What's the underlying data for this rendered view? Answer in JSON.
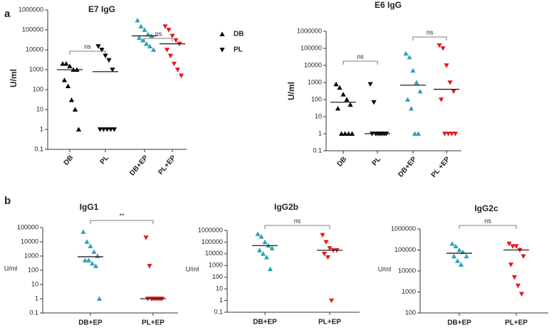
{
  "panel_labels": [
    "a",
    "b"
  ],
  "chart_data": [
    {
      "type": "scatter",
      "title": "E7 IgG",
      "y_label": "U/ml",
      "log_scale": true,
      "ylim": [
        0.1,
        1000000
      ],
      "yticks": [
        0.1,
        1,
        10,
        100,
        1000,
        10000,
        100000,
        1000000
      ],
      "categories": [
        "DB",
        "PL",
        "DB+EP",
        "PL+EP"
      ],
      "legend": [
        {
          "name": "DB",
          "marker": "triangle-up",
          "color": "#000000"
        },
        {
          "name": "PL",
          "marker": "triangle-down",
          "color": "#000000"
        }
      ],
      "annotations": [
        "ns",
        "ns"
      ],
      "groups": [
        {
          "color": "#000000",
          "marker": "triangle-up",
          "values": [
            2000,
            2000,
            1500,
            1000,
            1000,
            300,
            150,
            30,
            10,
            1
          ],
          "median": 1000
        },
        {
          "color": "#000000",
          "marker": "triangle-down",
          "values": [
            15000,
            10000,
            5000,
            3000,
            1000,
            1,
            1,
            1,
            1,
            1
          ],
          "median": 800
        },
        {
          "color": "#2aa3b8",
          "marker": "triangle-up",
          "values": [
            300000,
            150000,
            100000,
            60000,
            50000,
            40000,
            30000,
            20000,
            15000,
            10000
          ],
          "median": 50000
        },
        {
          "color": "#e8191c",
          "marker": "triangle-down",
          "values": [
            150000,
            100000,
            50000,
            30000,
            20000,
            10000,
            5000,
            2000,
            1000,
            500
          ],
          "median": 20000
        }
      ]
    },
    {
      "type": "scatter",
      "title": "E6 IgG",
      "y_label": "U/ml",
      "log_scale": true,
      "ylim": [
        0.1,
        1000000
      ],
      "yticks": [
        0.1,
        1,
        10,
        100,
        1000,
        10000,
        100000,
        1000000
      ],
      "categories": [
        "DB",
        "PL",
        "DB+EP",
        "PL +EP"
      ],
      "annotations": [
        "ns",
        "ns"
      ],
      "groups": [
        {
          "color": "#000000",
          "marker": "triangle-up",
          "values": [
            800,
            500,
            200,
            100,
            50,
            30,
            1,
            1,
            1,
            1
          ],
          "median": 70
        },
        {
          "color": "#000000",
          "marker": "triangle-down",
          "values": [
            800,
            70,
            1,
            1,
            1,
            1,
            1,
            1,
            1,
            1
          ],
          "median": 1
        },
        {
          "color": "#2aa3b8",
          "marker": "triangle-up",
          "values": [
            50000,
            30000,
            5000,
            1000,
            300,
            100,
            30,
            1,
            1
          ],
          "median": 700
        },
        {
          "color": "#e8191c",
          "marker": "triangle-down",
          "values": [
            150000,
            100000,
            10000,
            1000,
            300,
            100,
            1,
            1,
            1,
            1
          ],
          "median": 400
        }
      ]
    },
    {
      "type": "scatter",
      "title": "IgG1",
      "y_label": "U/ml",
      "log_scale": true,
      "ylim": [
        0.1,
        100000
      ],
      "yticks": [
        0.1,
        1,
        10,
        100,
        1000,
        10000,
        100000
      ],
      "categories": [
        "DB+EP",
        "PL+EP"
      ],
      "annotations": [
        "**"
      ],
      "groups": [
        {
          "color": "#2aa3b8",
          "marker": "triangle-up",
          "values": [
            50000,
            10000,
            5000,
            2000,
            1000,
            500,
            500,
            300,
            200,
            1
          ],
          "median": 900
        },
        {
          "color": "#e8191c",
          "marker": "triangle-down",
          "values": [
            20000,
            200,
            1,
            1,
            1,
            1,
            1,
            1,
            1,
            1
          ],
          "median": 1
        }
      ]
    },
    {
      "type": "scatter",
      "title": "IgG2b",
      "y_label": "U/ml",
      "log_scale": true,
      "ylim": [
        0.1,
        1000000
      ],
      "yticks": [
        0.1,
        1,
        10,
        100,
        1000,
        10000,
        100000,
        1000000
      ],
      "categories": [
        "DB+EP",
        "PL+EP"
      ],
      "annotations": [
        "ns"
      ],
      "groups": [
        {
          "color": "#2aa3b8",
          "marker": "triangle-up",
          "values": [
            500000,
            300000,
            100000,
            50000,
            30000,
            20000,
            10000,
            5000,
            500
          ],
          "median": 50000
        },
        {
          "color": "#e8191c",
          "marker": "triangle-down",
          "values": [
            400000,
            100000,
            30000,
            20000,
            20000,
            10000,
            5000,
            1
          ],
          "median": 20000
        }
      ]
    },
    {
      "type": "scatter",
      "title": "IgG2c",
      "y_label": "U/ml",
      "log_scale": true,
      "ylim": [
        100,
        1000000
      ],
      "yticks": [
        100,
        1000,
        10000,
        100000,
        1000000
      ],
      "categories": [
        "DB+EP",
        "PL+EP"
      ],
      "annotations": [
        "ns"
      ],
      "groups": [
        {
          "color": "#2aa3b8",
          "marker": "triangle-up",
          "values": [
            200000,
            150000,
            100000,
            80000,
            50000,
            50000,
            30000,
            20000
          ],
          "median": 70000
        },
        {
          "color": "#e8191c",
          "marker": "triangle-down",
          "values": [
            200000,
            150000,
            150000,
            100000,
            50000,
            20000,
            5000,
            2000,
            800
          ],
          "median": 100000
        }
      ]
    }
  ]
}
